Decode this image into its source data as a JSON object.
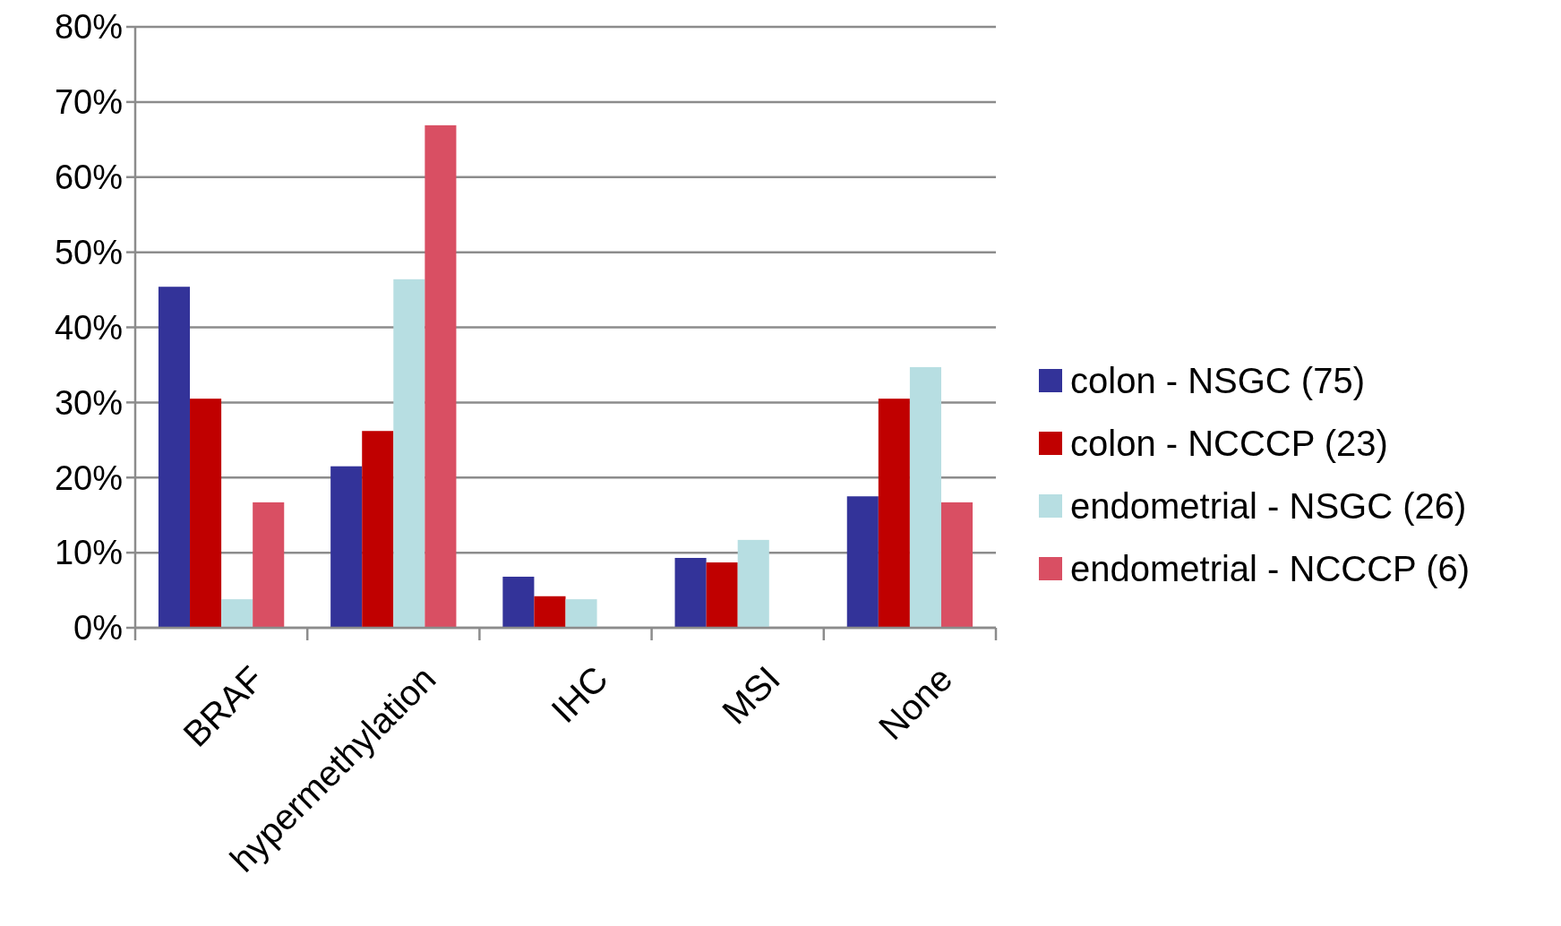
{
  "chart_data": {
    "type": "bar",
    "categories": [
      "BRAF",
      "hypermethylation",
      "IHC",
      "MSI",
      "None"
    ],
    "series": [
      {
        "name": "colon - NSGC (75)",
        "color": "#333399",
        "values": [
          45.4,
          21.5,
          6.8,
          9.3,
          17.5
        ]
      },
      {
        "name": "colon - NCCCP (23)",
        "color": "#c00000",
        "values": [
          30.5,
          26.2,
          4.2,
          8.7,
          30.5
        ]
      },
      {
        "name": "endometrial - NSGC (26)",
        "color": "#b7dee2",
        "values": [
          3.8,
          46.4,
          3.8,
          11.7,
          34.7
        ]
      },
      {
        "name": "endometrial - NCCCP (6)",
        "color": "#d94f63",
        "values": [
          16.7,
          66.9,
          0,
          0,
          16.7
        ]
      }
    ],
    "ylim": [
      0,
      80
    ],
    "yticks": [
      {
        "value": 0,
        "label": "0%"
      },
      {
        "value": 10,
        "label": "10%"
      },
      {
        "value": 20,
        "label": "20%"
      },
      {
        "value": 30,
        "label": "30%"
      },
      {
        "value": 40,
        "label": "40%"
      },
      {
        "value": 50,
        "label": "50%"
      },
      {
        "value": 60,
        "label": "60%"
      },
      {
        "value": 70,
        "label": "70%"
      },
      {
        "value": 80,
        "label": "80%"
      }
    ],
    "grid": "y",
    "legend": "right"
  }
}
